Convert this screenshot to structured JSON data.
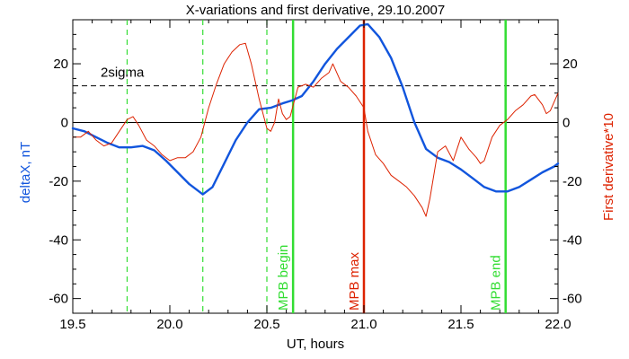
{
  "chart_data": {
    "type": "line",
    "title": "X-variations and first derivative, 29.10.2007",
    "xlabel": "UT, hours",
    "ylabel_left": "deltaX, nT",
    "ylabel_right": "First derivative*10",
    "xlim": [
      19.5,
      22.0
    ],
    "ylim": [
      -65,
      35
    ],
    "x_ticks": [
      "19.5",
      "20.0",
      "20.5",
      "21.0",
      "21.5",
      "22.0"
    ],
    "y_ticks": [
      "-60",
      "-40",
      "-20",
      "0",
      "20"
    ],
    "series": [
      {
        "name": "deltaX, nT",
        "color": "#1155dd",
        "points": [
          [
            19.5,
            -2
          ],
          [
            19.56,
            -3
          ],
          [
            19.62,
            -5
          ],
          [
            19.68,
            -7
          ],
          [
            19.74,
            -8.5
          ],
          [
            19.8,
            -8.5
          ],
          [
            19.86,
            -8
          ],
          [
            19.92,
            -9.5
          ],
          [
            19.98,
            -13
          ],
          [
            20.04,
            -17
          ],
          [
            20.1,
            -21
          ],
          [
            20.17,
            -24.5
          ],
          [
            20.22,
            -22
          ],
          [
            20.28,
            -14
          ],
          [
            20.34,
            -6
          ],
          [
            20.4,
            0
          ],
          [
            20.46,
            4.5
          ],
          [
            20.52,
            5
          ],
          [
            20.58,
            6.5
          ],
          [
            20.63,
            7.5
          ],
          [
            20.68,
            9
          ],
          [
            20.74,
            14
          ],
          [
            20.8,
            20
          ],
          [
            20.86,
            25
          ],
          [
            20.92,
            29
          ],
          [
            20.98,
            33
          ],
          [
            21.02,
            33.5
          ],
          [
            21.08,
            29
          ],
          [
            21.14,
            22
          ],
          [
            21.2,
            12
          ],
          [
            21.26,
            0
          ],
          [
            21.32,
            -9
          ],
          [
            21.38,
            -12
          ],
          [
            21.44,
            -13.5
          ],
          [
            21.5,
            -16
          ],
          [
            21.56,
            -19
          ],
          [
            21.62,
            -22
          ],
          [
            21.68,
            -23.5
          ],
          [
            21.74,
            -23.5
          ],
          [
            21.8,
            -22
          ],
          [
            21.86,
            -19.5
          ],
          [
            21.92,
            -17
          ],
          [
            21.98,
            -15
          ],
          [
            22.0,
            -14
          ]
        ]
      },
      {
        "name": "First derivative*10",
        "color": "#dd2200",
        "points": [
          [
            19.5,
            -5
          ],
          [
            19.54,
            -5
          ],
          [
            19.58,
            -3
          ],
          [
            19.62,
            -6
          ],
          [
            19.66,
            -8
          ],
          [
            19.7,
            -7
          ],
          [
            19.74,
            -3
          ],
          [
            19.78,
            1
          ],
          [
            19.81,
            2
          ],
          [
            19.84,
            -1
          ],
          [
            19.88,
            -6
          ],
          [
            19.92,
            -8
          ],
          [
            19.96,
            -11
          ],
          [
            20.0,
            -13
          ],
          [
            20.04,
            -12
          ],
          [
            20.08,
            -12
          ],
          [
            20.12,
            -10
          ],
          [
            20.16,
            -5
          ],
          [
            20.2,
            5
          ],
          [
            20.24,
            13
          ],
          [
            20.28,
            20
          ],
          [
            20.32,
            24
          ],
          [
            20.36,
            26.5
          ],
          [
            20.39,
            27
          ],
          [
            20.42,
            20
          ],
          [
            20.46,
            8
          ],
          [
            20.5,
            -2
          ],
          [
            20.52,
            -3
          ],
          [
            20.54,
            0
          ],
          [
            20.56,
            8
          ],
          [
            20.58,
            3
          ],
          [
            20.6,
            1
          ],
          [
            20.62,
            2
          ],
          [
            20.66,
            12
          ],
          [
            20.7,
            13
          ],
          [
            20.74,
            12
          ],
          [
            20.78,
            15
          ],
          [
            20.82,
            17
          ],
          [
            20.84,
            20
          ],
          [
            20.88,
            14
          ],
          [
            20.92,
            12
          ],
          [
            20.96,
            9
          ],
          [
            21.0,
            5
          ],
          [
            21.02,
            -3
          ],
          [
            21.06,
            -11
          ],
          [
            21.1,
            -14
          ],
          [
            21.14,
            -18
          ],
          [
            21.18,
            -20
          ],
          [
            21.22,
            -22
          ],
          [
            21.26,
            -25
          ],
          [
            21.3,
            -29
          ],
          [
            21.32,
            -32
          ],
          [
            21.34,
            -26
          ],
          [
            21.38,
            -10
          ],
          [
            21.42,
            -8
          ],
          [
            21.46,
            -13
          ],
          [
            21.5,
            -5
          ],
          [
            21.54,
            -9
          ],
          [
            21.58,
            -12
          ],
          [
            21.6,
            -14
          ],
          [
            21.62,
            -13
          ],
          [
            21.66,
            -5
          ],
          [
            21.7,
            -1
          ],
          [
            21.74,
            1
          ],
          [
            21.78,
            4
          ],
          [
            21.82,
            6
          ],
          [
            21.86,
            9
          ],
          [
            21.88,
            9.5
          ],
          [
            21.92,
            6
          ],
          [
            21.94,
            3
          ],
          [
            21.96,
            4
          ],
          [
            21.98,
            7
          ],
          [
            22.0,
            10
          ]
        ]
      }
    ],
    "reference_lines": [
      {
        "value": 0,
        "style": "solid",
        "color": "#000000"
      },
      {
        "value": 12.5,
        "style": "dashed",
        "color": "#000000",
        "label": "2sigma"
      }
    ],
    "vertical_markers": [
      {
        "x": 19.78,
        "style": "dashed",
        "color": "#33dd33",
        "label": ""
      },
      {
        "x": 20.17,
        "style": "dashed",
        "color": "#33dd33",
        "label": ""
      },
      {
        "x": 20.5,
        "style": "dashed",
        "color": "#33dd33",
        "label": ""
      },
      {
        "x": 20.635,
        "style": "solid",
        "color": "#33dd33",
        "label": "MPB begin"
      },
      {
        "x": 21.0,
        "style": "solid",
        "color": "#dd2200",
        "label": "MPB max"
      },
      {
        "x": 21.73,
        "style": "solid",
        "color": "#33dd33",
        "label": "MPB end"
      }
    ]
  }
}
